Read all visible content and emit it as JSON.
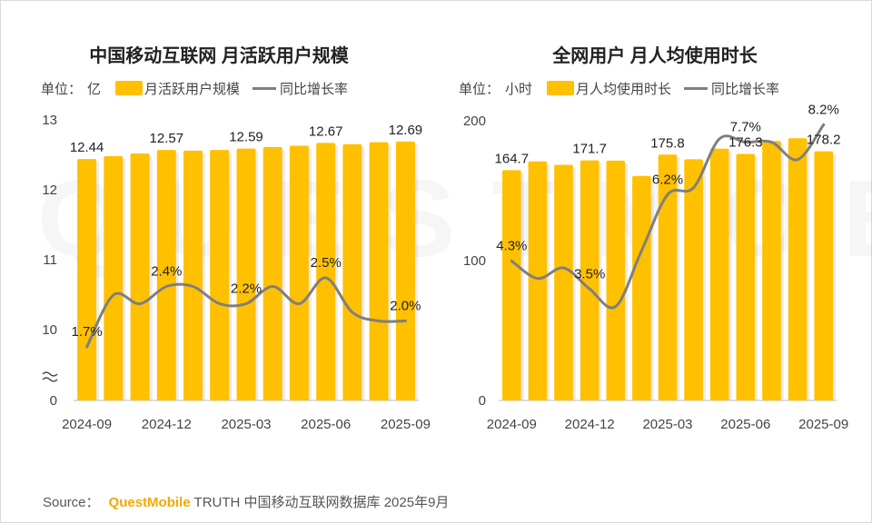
{
  "watermark": "QUESTMOBILE",
  "footer": {
    "source_label": "Source：",
    "brand": "QuestMobile",
    "text": "TRUTH 中国移动互联网数据库 2025年9月"
  },
  "colors": {
    "bar": "#FFC000",
    "line": "#7F7F7F"
  },
  "chart_data": [
    {
      "type": "bar",
      "title": "中国移动互联网 月活跃用户规模",
      "unit_label": "单位：",
      "unit": "亿",
      "axis_break": true,
      "x": [
        "2024-09",
        "2024-10",
        "2024-11",
        "2024-12",
        "2025-01",
        "2025-02",
        "2025-03",
        "2025-04",
        "2025-05",
        "2025-06",
        "2025-07",
        "2025-08",
        "2025-09"
      ],
      "x_tick_labels": [
        "2024-09",
        "2024-12",
        "2025-03",
        "2025-06",
        "2025-09"
      ],
      "y_tick_labels": [
        "0",
        "10",
        "11",
        "12",
        "13"
      ],
      "ylim": [
        10,
        13
      ],
      "series": [
        {
          "name": "月活跃用户规模",
          "kind": "bar",
          "values": [
            12.44,
            12.48,
            12.52,
            12.57,
            12.56,
            12.57,
            12.59,
            12.61,
            12.63,
            12.67,
            12.65,
            12.68,
            12.69
          ],
          "labels": [
            "12.44",
            null,
            null,
            "12.57",
            null,
            null,
            "12.59",
            null,
            null,
            "12.67",
            null,
            null,
            "12.69"
          ]
        },
        {
          "name": "同比增长率",
          "kind": "line",
          "values": [
            1.7,
            2.3,
            2.2,
            2.4,
            2.4,
            2.2,
            2.2,
            2.4,
            2.2,
            2.5,
            2.1,
            2.0,
            2.0
          ],
          "labels": [
            "1.7%",
            null,
            null,
            "2.4%",
            null,
            null,
            "2.2%",
            null,
            null,
            "2.5%",
            null,
            null,
            "2.0%"
          ]
        }
      ]
    },
    {
      "type": "bar",
      "title": "全网用户 月人均使用时长",
      "unit_label": "单位：",
      "unit": "小时",
      "x": [
        "2024-09",
        "2024-10",
        "2024-11",
        "2024-12",
        "2025-01",
        "2025-02",
        "2025-03",
        "2025-04",
        "2025-05",
        "2025-06",
        "2025-07",
        "2025-08",
        "2025-09"
      ],
      "x_tick_labels": [
        "2024-09",
        "2024-12",
        "2025-03",
        "2025-06",
        "2025-09"
      ],
      "y_tick_labels": [
        "0",
        "100",
        "200"
      ],
      "ylim": [
        0,
        200
      ],
      "series": [
        {
          "name": "月人均使用时长",
          "kind": "bar",
          "values": [
            164.7,
            171.0,
            168.5,
            171.7,
            171.5,
            160.5,
            175.8,
            172.5,
            180.0,
            176.3,
            185.5,
            187.5,
            178.2
          ],
          "labels": [
            "164.7",
            null,
            null,
            "171.7",
            null,
            null,
            "175.8",
            null,
            null,
            "176.3",
            null,
            null,
            "178.2"
          ]
        },
        {
          "name": "同比增长率",
          "kind": "line",
          "values": [
            4.3,
            3.8,
            4.1,
            3.5,
            3.0,
            4.6,
            6.2,
            6.4,
            7.8,
            7.7,
            7.7,
            7.2,
            8.2
          ],
          "labels": [
            "4.3%",
            null,
            null,
            "3.5%",
            null,
            null,
            "6.2%",
            null,
            null,
            "7.7%",
            null,
            null,
            "8.2%"
          ]
        }
      ]
    }
  ]
}
